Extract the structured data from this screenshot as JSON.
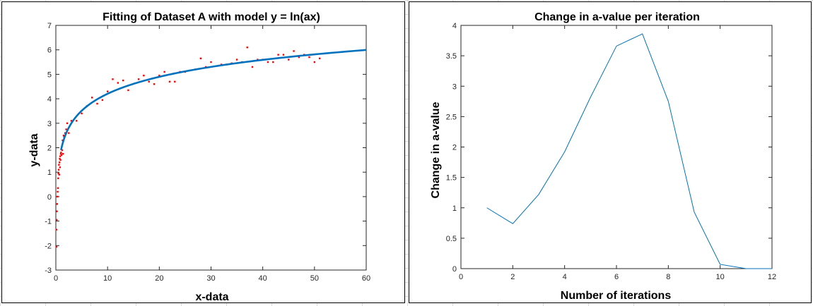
{
  "chart_data": [
    {
      "type": "scatter",
      "title": "Fitting of Dataset A with model y = ln(ax)",
      "xlabel": "x-data",
      "ylabel": "y-data",
      "xlim": [
        0,
        60
      ],
      "ylim": [
        -3,
        7
      ],
      "xticks": [
        "0",
        "10",
        "20",
        "30",
        "40",
        "50",
        "60"
      ],
      "yticks": [
        "-3",
        "-2",
        "-1",
        "0",
        "1",
        "2",
        "3",
        "4",
        "5",
        "6",
        "7"
      ],
      "grid": false,
      "series": [
        {
          "kind": "scatter",
          "color": "#ff0000",
          "points": [
            [
              0.1,
              -2.05
            ],
            [
              0.1,
              -1.35
            ],
            [
              0.15,
              -0.95
            ],
            [
              0.2,
              -0.6
            ],
            [
              0.25,
              -0.3
            ],
            [
              0.3,
              0.0
            ],
            [
              0.35,
              0.2
            ],
            [
              0.4,
              0.35
            ],
            [
              0.45,
              0.75
            ],
            [
              0.5,
              0.95
            ],
            [
              0.55,
              1.1
            ],
            [
              0.6,
              1.3
            ],
            [
              0.65,
              0.9
            ],
            [
              0.7,
              1.4
            ],
            [
              0.75,
              1.55
            ],
            [
              0.8,
              1.2
            ],
            [
              0.85,
              1.65
            ],
            [
              0.9,
              1.5
            ],
            [
              0.95,
              1.75
            ],
            [
              1.0,
              1.8
            ],
            [
              1.1,
              1.7
            ],
            [
              1.2,
              1.9
            ],
            [
              1.3,
              2.3
            ],
            [
              1.4,
              1.75
            ],
            [
              1.5,
              2.5
            ],
            [
              1.6,
              2.45
            ],
            [
              1.8,
              2.6
            ],
            [
              2.0,
              2.75
            ],
            [
              2.2,
              3.0
            ],
            [
              2.5,
              2.6
            ],
            [
              3,
              3.1
            ],
            [
              4,
              3.1
            ],
            [
              5,
              3.4
            ],
            [
              6,
              3.7
            ],
            [
              7,
              4.05
            ],
            [
              8,
              3.8
            ],
            [
              9,
              3.95
            ],
            [
              10,
              4.3
            ],
            [
              11,
              4.8
            ],
            [
              12,
              4.65
            ],
            [
              13,
              4.75
            ],
            [
              14,
              4.35
            ],
            [
              16,
              4.8
            ],
            [
              17,
              4.95
            ],
            [
              18,
              4.7
            ],
            [
              19,
              4.6
            ],
            [
              20,
              4.95
            ],
            [
              21,
              5.1
            ],
            [
              22,
              4.7
            ],
            [
              23,
              4.7
            ],
            [
              24,
              5.1
            ],
            [
              25,
              5.1
            ],
            [
              27,
              5.2
            ],
            [
              28,
              5.65
            ],
            [
              29,
              5.3
            ],
            [
              30,
              5.5
            ],
            [
              32,
              5.4
            ],
            [
              33,
              5.4
            ],
            [
              34,
              5.45
            ],
            [
              35,
              5.6
            ],
            [
              36,
              5.5
            ],
            [
              37,
              6.1
            ],
            [
              38,
              5.3
            ],
            [
              39,
              5.6
            ],
            [
              40,
              5.6
            ],
            [
              41,
              5.5
            ],
            [
              42,
              5.5
            ],
            [
              43,
              5.8
            ],
            [
              44,
              5.8
            ],
            [
              45,
              5.6
            ],
            [
              46,
              5.95
            ],
            [
              47,
              5.7
            ],
            [
              48,
              5.8
            ],
            [
              49,
              5.7
            ],
            [
              50,
              5.5
            ],
            [
              51,
              5.65
            ]
          ]
        },
        {
          "kind": "line",
          "color": "#0072bd",
          "model": "y = ln(ax)",
          "a": 6.7,
          "x_range": [
            1.0,
            60
          ]
        }
      ]
    },
    {
      "type": "line",
      "title": "Change in a-value per iteration",
      "xlabel": "Number of iterations",
      "ylabel": "Change in a-value",
      "xlim": [
        0,
        12
      ],
      "ylim": [
        0,
        4
      ],
      "xticks": [
        "0",
        "2",
        "4",
        "6",
        "8",
        "10",
        "12"
      ],
      "yticks": [
        "0",
        "0.5",
        "1",
        "1.5",
        "2",
        "2.5",
        "3",
        "3.5",
        "4"
      ],
      "grid": false,
      "series": [
        {
          "kind": "line",
          "color": "#0072bd",
          "x": [
            1,
            2,
            3,
            4,
            5,
            6,
            7,
            8,
            9,
            10,
            11,
            12
          ],
          "y": [
            1.0,
            0.74,
            1.22,
            1.92,
            2.82,
            3.66,
            3.86,
            2.75,
            0.93,
            0.07,
            0.0,
            0.0
          ]
        }
      ]
    }
  ]
}
